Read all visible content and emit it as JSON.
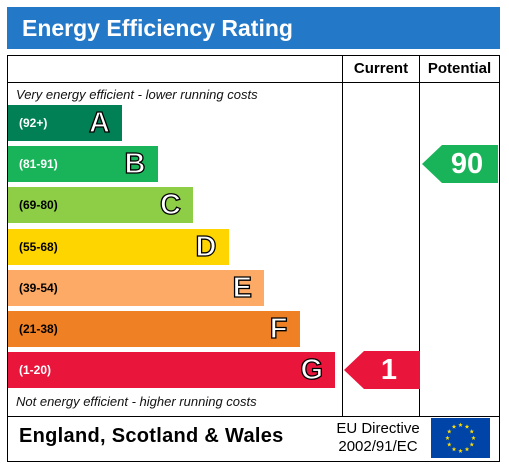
{
  "title": "Energy Efficiency Rating",
  "columns": {
    "current": "Current",
    "potential": "Potential"
  },
  "captions": {
    "top": "Very energy efficient - lower running costs",
    "bottom": "Not energy efficient - higher running costs"
  },
  "chart_data": {
    "type": "bar",
    "title": "Energy Efficiency Rating",
    "categories": [
      "A",
      "B",
      "C",
      "D",
      "E",
      "F",
      "G"
    ],
    "bands": [
      {
        "letter": "A",
        "range": "(92+)",
        "min": 92,
        "max": 100,
        "color": "#008054"
      },
      {
        "letter": "B",
        "range": "(81-91)",
        "min": 81,
        "max": 91,
        "color": "#19b459"
      },
      {
        "letter": "C",
        "range": "(69-80)",
        "min": 69,
        "max": 80,
        "color": "#8dce46"
      },
      {
        "letter": "D",
        "range": "(55-68)",
        "min": 55,
        "max": 68,
        "color": "#ffd500"
      },
      {
        "letter": "E",
        "range": "(39-54)",
        "min": 39,
        "max": 54,
        "color": "#fcaa65"
      },
      {
        "letter": "F",
        "range": "(21-38)",
        "min": 21,
        "max": 38,
        "color": "#ef8023"
      },
      {
        "letter": "G",
        "range": "(1-20)",
        "min": 1,
        "max": 20,
        "color": "#e9153b"
      }
    ],
    "current": {
      "value": 1,
      "label": "1",
      "band": "G",
      "color": "#e9153b"
    },
    "potential": {
      "value": 90,
      "label": "90",
      "band": "B",
      "color": "#19b459"
    }
  },
  "footer": {
    "region": "England, Scotland & Wales",
    "directive_line1": "EU Directive",
    "directive_line2": "2002/91/EC",
    "flag_icon": "eu-flag-icon",
    "flag_color": "#0044a8",
    "star_color": "#ffdd00"
  }
}
